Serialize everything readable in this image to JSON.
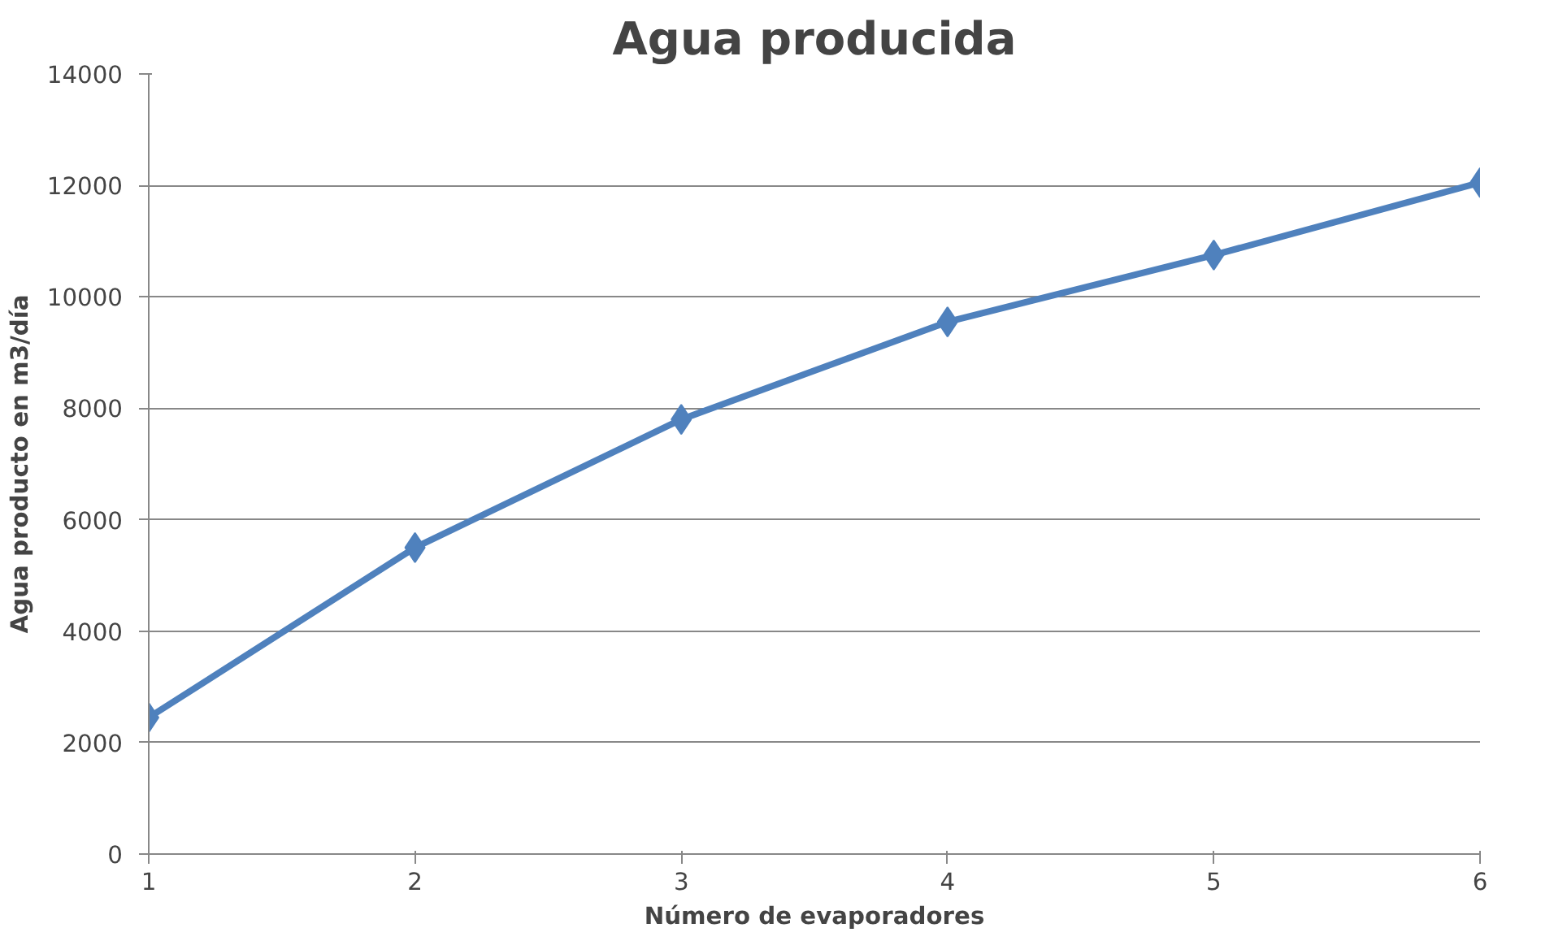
{
  "chart_data": {
    "type": "line",
    "title": "Agua producida",
    "xlabel": "Número de evaporadores",
    "ylabel": "Agua producto en m3/día",
    "x": [
      1,
      2,
      3,
      4,
      5,
      6
    ],
    "series": [
      {
        "color": "#4f81bd",
        "values": [
          2450,
          5500,
          7800,
          9550,
          10750,
          12050
        ]
      }
    ],
    "xlim": [
      1,
      6
    ],
    "xticks": [
      1,
      2,
      3,
      4,
      5,
      6
    ],
    "ylim": [
      0,
      14000
    ],
    "yticks": [
      0,
      2000,
      4000,
      6000,
      8000,
      10000,
      12000,
      14000
    ],
    "grid": "y",
    "marker": "diamond",
    "line_style": "solid"
  }
}
